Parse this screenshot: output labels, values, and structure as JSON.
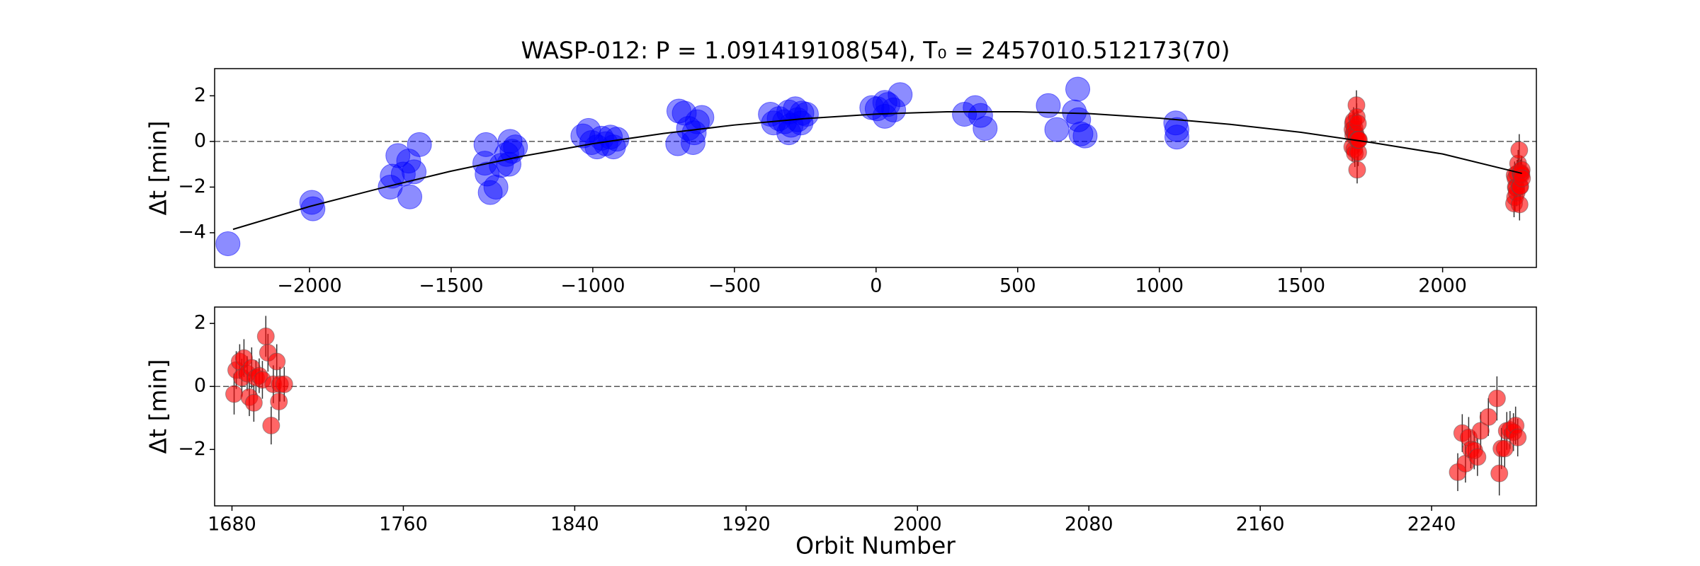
{
  "chart_data": [
    {
      "type": "scatter",
      "title": "WASP-012: P = 1.091419108(54), T₀ = 2457010.512173(70)",
      "ylabel": "Δt [min]",
      "xlim": [
        -2335,
        2331
      ],
      "ylim": [
        -5.52,
        3.19
      ],
      "xticks": [
        {
          "value": -2000,
          "label": "−2000"
        },
        {
          "value": -1500,
          "label": "−1500"
        },
        {
          "value": -1000,
          "label": "−1000"
        },
        {
          "value": -500,
          "label": "−500"
        },
        0,
        500,
        1000,
        1500,
        2000
      ],
      "yticks": [
        {
          "value": -4,
          "label": "−4"
        },
        {
          "value": -2,
          "label": "−2"
        },
        0,
        2
      ],
      "hline": 0,
      "series": [
        {
          "color": "#0000ff",
          "x": [
            -2288,
            -1992,
            -1988,
            -1715,
            -1708,
            -1688,
            -1669,
            -1650,
            -1646,
            -1631,
            -1612,
            -1377,
            -1381,
            -1373,
            -1362,
            -1342,
            -1323,
            -1304,
            -1292,
            -1285,
            -1273,
            -1296,
            -1035,
            -1015,
            -1004,
            -985,
            -969,
            -954,
            -938,
            -927,
            -915,
            -696,
            -677,
            -662,
            -642,
            -631,
            -615,
            -700,
            -646,
            -373,
            -362,
            -342,
            -323,
            -308,
            -300,
            -285,
            -277,
            -262,
            -246,
            -308,
            -265,
            -15,
            4,
            31,
            42,
            62,
            85,
            31,
            312,
            350,
            369,
            385,
            608,
            638,
            700,
            712,
            715,
            723,
            738,
            1058,
            1062,
            1062
          ],
          "values": [
            -4.48,
            -2.67,
            -2.95,
            -2.0,
            -1.52,
            -0.62,
            -1.43,
            -0.86,
            -2.43,
            -1.33,
            -0.14,
            -0.14,
            -0.95,
            -1.43,
            -2.24,
            -2.0,
            -1.05,
            -0.57,
            0,
            -0.43,
            -0.24,
            -1.0,
            0.24,
            0.48,
            -0.05,
            -0.24,
            0.14,
            -0.1,
            0.19,
            -0.24,
            0.1,
            1.33,
            1.24,
            0.57,
            0.38,
            0.86,
            1.05,
            -0.1,
            -0.05,
            1.19,
            0.81,
            1.0,
            0.86,
            1.29,
            0.71,
            1.43,
            0.95,
            1.24,
            1.19,
            0.38,
            0.81,
            1.48,
            1.43,
            1.1,
            1.62,
            1.38,
            2.05,
            1.71,
            1.19,
            1.48,
            1.14,
            0.57,
            1.57,
            0.52,
            1.29,
            2.29,
            0.95,
            0.33,
            0.24,
            0.81,
            0.52,
            0.19
          ]
        },
        {
          "color": "#ff0000",
          "x": [
            1681,
            1682,
            1683.6,
            1684.6,
            1685.6,
            1687.1,
            1688.1,
            1689.2,
            1690.2,
            1691.2,
            1692.7,
            1694.2,
            1695.8,
            1696.8,
            1698.3,
            1699.3,
            1700.9,
            1701.9,
            1702.4,
            1704.4,
            2252.2,
            2254.3,
            2255.8,
            2257.3,
            2258.3,
            2259.9,
            2261.4,
            2262.9,
            2266.5,
            2270.5,
            2271.6,
            2272.6,
            2274.1,
            2275.1,
            2276.6,
            2278.2,
            2279.2,
            2280.2
          ],
          "values": [
            -0.24,
            0.52,
            0.79,
            0.28,
            0.9,
            0.41,
            -0.34,
            0.59,
            -0.52,
            0.28,
            0.34,
            0.21,
            1.59,
            1.07,
            -1.24,
            0.07,
            0.79,
            -0.48,
            0.07,
            0.07,
            -2.72,
            -1.48,
            -2.45,
            -1.62,
            -2.0,
            -2.03,
            -2.24,
            -1.41,
            -0.97,
            -0.38,
            -2.76,
            -1.97,
            -1.97,
            -1.41,
            -1.38,
            -1.45,
            -1.24,
            -1.62
          ],
          "errors": [
            0.65,
            0.6,
            0.55,
            0.6,
            0.6,
            0.55,
            0.6,
            0.65,
            0.6,
            0.55,
            0.55,
            0.6,
            0.65,
            0.6,
            0.6,
            0.6,
            0.55,
            0.6,
            0.55,
            0.55,
            0.6,
            0.6,
            0.6,
            0.65,
            0.6,
            0.6,
            0.6,
            0.6,
            0.6,
            0.7,
            0.7,
            0.65,
            0.6,
            0.6,
            0.6,
            0.6,
            0.6,
            0.6
          ]
        },
        {
          "type": "line",
          "color": "#000000",
          "x": [
            -2270,
            -2000,
            -1750,
            -1500,
            -1250,
            -1000,
            -750,
            -500,
            -250,
            0,
            250,
            500,
            750,
            1000,
            1250,
            1500,
            1750,
            2000,
            2280
          ],
          "values": [
            -3.85,
            -2.85,
            -2.05,
            -1.3,
            -0.65,
            -0.1,
            0.35,
            0.72,
            1.0,
            1.2,
            1.3,
            1.3,
            1.22,
            1.02,
            0.75,
            0.4,
            -0.05,
            -0.55,
            -1.4
          ]
        }
      ]
    },
    {
      "type": "scatter",
      "ylabel": "Δt [min]",
      "xlabel": "Orbit Number",
      "xlim": [
        1671.9,
        2288.9
      ],
      "ylim": [
        -3.79,
        2.52
      ],
      "xticks": [
        1680,
        1760,
        1840,
        1920,
        2000,
        2080,
        2160,
        2240
      ],
      "yticks": [
        {
          "value": -2,
          "label": "−2"
        },
        0,
        2
      ],
      "hline": 0,
      "series": [
        {
          "color": "#ff0000",
          "x": [
            1681,
            1682,
            1683.6,
            1684.6,
            1685.6,
            1687.1,
            1688.1,
            1689.2,
            1690.2,
            1691.2,
            1692.7,
            1694.2,
            1695.8,
            1696.8,
            1698.3,
            1699.3,
            1700.9,
            1701.9,
            1702.4,
            1704.4,
            2252.2,
            2254.3,
            2255.8,
            2257.3,
            2258.3,
            2259.9,
            2261.4,
            2262.9,
            2266.5,
            2270.5,
            2271.6,
            2272.6,
            2274.1,
            2275.1,
            2276.6,
            2278.2,
            2279.2,
            2280.2
          ],
          "values": [
            -0.24,
            0.52,
            0.79,
            0.28,
            0.9,
            0.41,
            -0.34,
            0.59,
            -0.52,
            0.28,
            0.34,
            0.21,
            1.59,
            1.07,
            -1.24,
            0.07,
            0.79,
            -0.48,
            0.07,
            0.07,
            -2.72,
            -1.48,
            -2.45,
            -1.62,
            -2.0,
            -2.03,
            -2.24,
            -1.41,
            -0.97,
            -0.38,
            -2.76,
            -1.97,
            -1.97,
            -1.41,
            -1.38,
            -1.45,
            -1.24,
            -1.62
          ],
          "errors": [
            0.65,
            0.6,
            0.55,
            0.6,
            0.6,
            0.55,
            0.6,
            0.65,
            0.6,
            0.55,
            0.55,
            0.6,
            0.65,
            0.6,
            0.6,
            0.6,
            0.55,
            0.6,
            0.55,
            0.55,
            0.6,
            0.6,
            0.6,
            0.65,
            0.6,
            0.6,
            0.6,
            0.6,
            0.6,
            0.7,
            0.7,
            0.65,
            0.6,
            0.6,
            0.6,
            0.6,
            0.6,
            0.6
          ]
        }
      ]
    }
  ]
}
